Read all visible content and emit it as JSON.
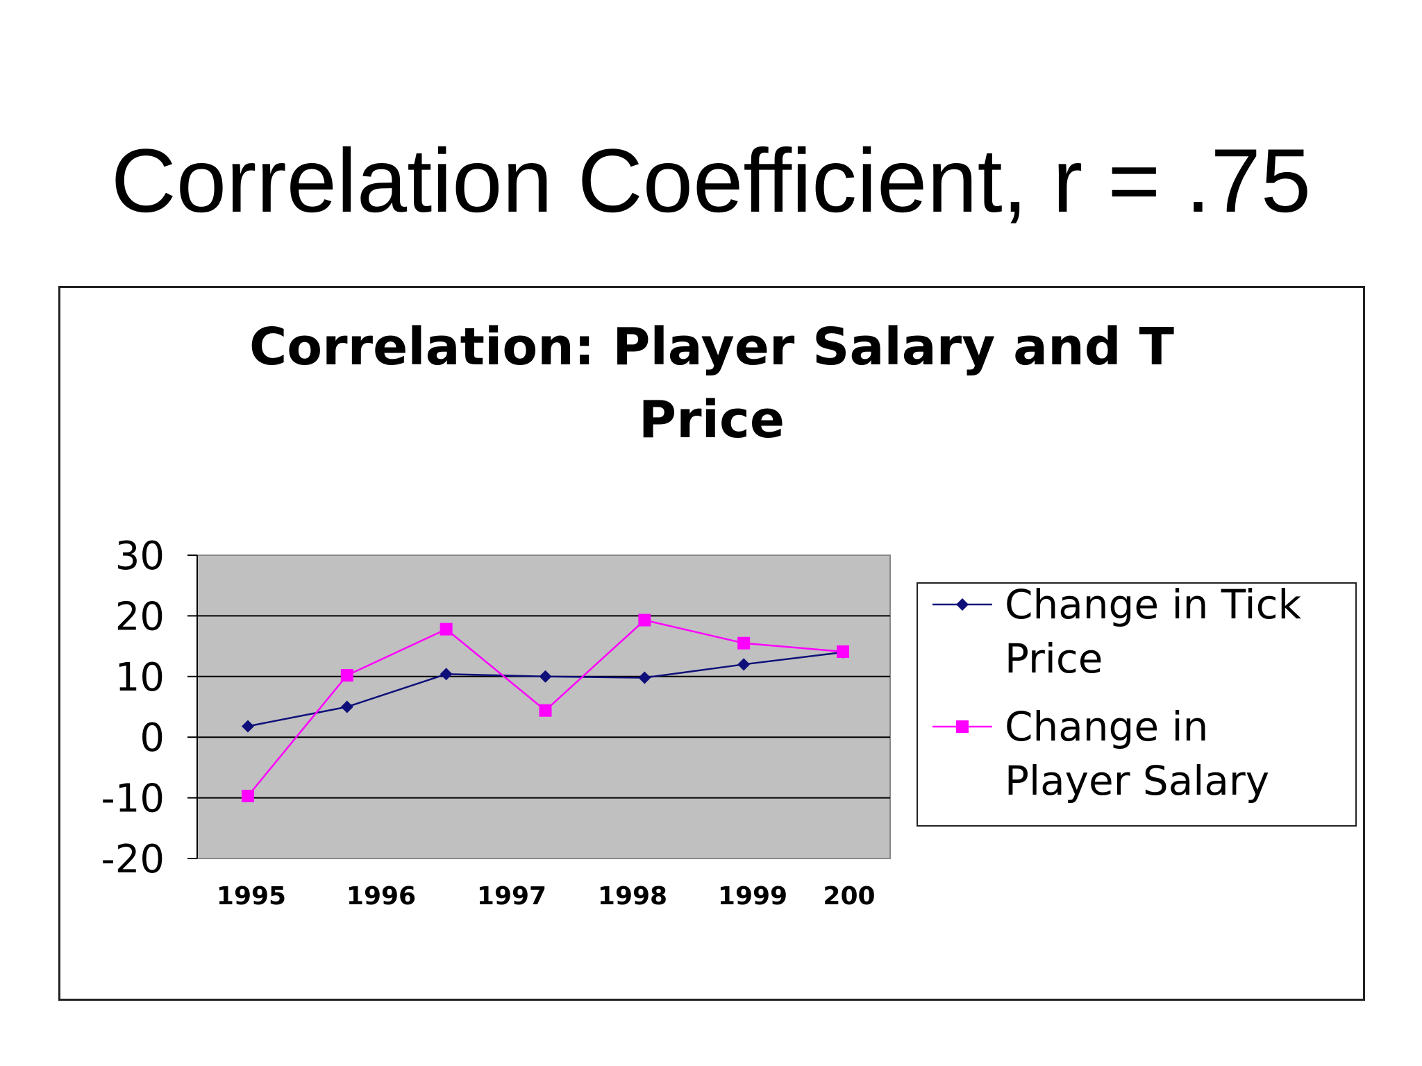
{
  "slide": {
    "title": "Correlation Coefficient, r = .75"
  },
  "chart_data": {
    "type": "line",
    "title_lines": [
      "Correlation: Player Salary and T",
      "Price"
    ],
    "categories": [
      "1995",
      "1996",
      "1997",
      "1998",
      "1999",
      "200"
    ],
    "x": [
      1995,
      1995.75,
      1996.5,
      1997.25,
      1998,
      1998.75,
      1999.5
    ],
    "ylim": [
      -20,
      30
    ],
    "yticks": [
      "30",
      "20",
      "10",
      "0",
      "-10",
      "-20"
    ],
    "grid": true,
    "legend_position": "right",
    "series": [
      {
        "name_lines": [
          "Change in Tick",
          "Price"
        ],
        "values": [
          1.8,
          5,
          10.4,
          10,
          9.8,
          12,
          14
        ],
        "color": "#0f0f7a",
        "marker": "diamond"
      },
      {
        "name_lines": [
          "Change in",
          "Player Salary"
        ],
        "values": [
          -9.7,
          10.2,
          17.8,
          4.4,
          19.3,
          15.5,
          14.1
        ],
        "color": "#ff00ff",
        "marker": "square"
      }
    ],
    "plot_background": "#c0c0c0"
  }
}
